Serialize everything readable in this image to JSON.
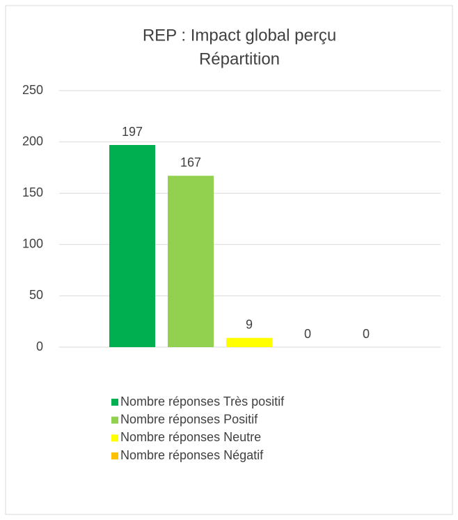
{
  "chart_data": {
    "type": "bar",
    "title": [
      "REP : Impact global perçu",
      "Répartition"
    ],
    "series": [
      {
        "name": "Nombre réponses Très positif",
        "color": "#00b050",
        "values": [
          197
        ]
      },
      {
        "name": "Nombre réponses Positif",
        "color": "#92d050",
        "values": [
          167
        ]
      },
      {
        "name": "Nombre réponses Neutre",
        "color": "#ffff00",
        "values": [
          9
        ]
      },
      {
        "name": "Nombre réponses Négatif",
        "color": "#ffc000",
        "values": [
          0
        ]
      },
      {
        "color": "#c00000",
        "values": [
          0
        ]
      }
    ],
    "ylim": [
      0,
      250
    ],
    "yticks": [
      0,
      50,
      100,
      150,
      200,
      250
    ],
    "grid": true,
    "legend": "bottom"
  }
}
